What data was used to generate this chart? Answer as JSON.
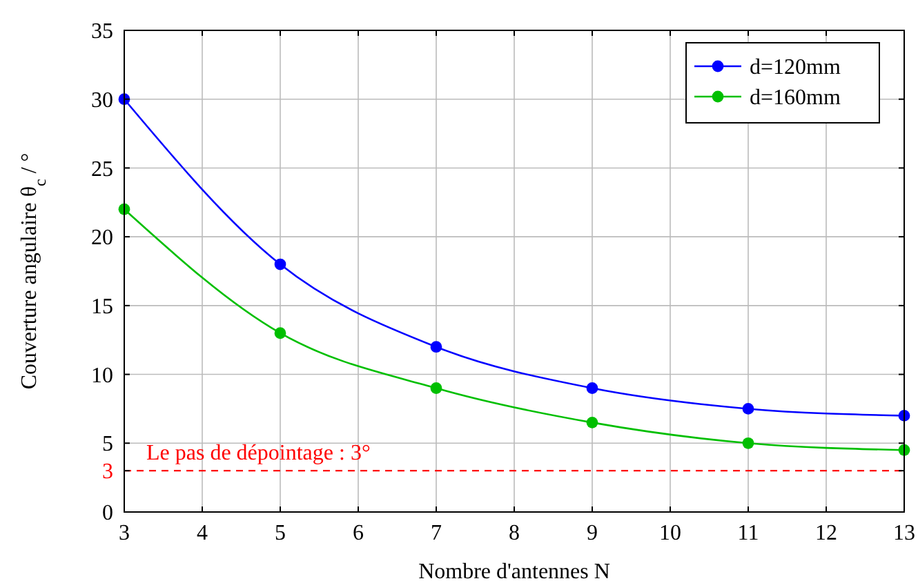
{
  "chart_data": {
    "type": "line",
    "xlabel": "Nombre d'antennes N",
    "ylabel": "Couverture angulaire θ$_{c}$ / °",
    "x": [
      3,
      5,
      7,
      9,
      11,
      13
    ],
    "series": [
      {
        "name": "d=120mm",
        "color": "#0000ff",
        "values": [
          30,
          18,
          12,
          9,
          7.5,
          7
        ]
      },
      {
        "name": "d=160mm",
        "color": "#00bf00",
        "values": [
          22,
          13,
          9,
          6.5,
          5,
          4.5
        ]
      }
    ],
    "xlim": [
      3,
      13
    ],
    "xticks": [
      3,
      4,
      5,
      6,
      7,
      8,
      9,
      10,
      11,
      12,
      13
    ],
    "ylim": [
      0,
      35
    ],
    "yticks": [
      0,
      3,
      5,
      10,
      15,
      20,
      25,
      30,
      35
    ],
    "ref_lines": [
      {
        "axis": "y",
        "value": 3,
        "label": "Le pas de dépointage : 3°",
        "color": "#ff0000",
        "line_style": "dashed"
      }
    ],
    "grid": true,
    "legend": "top right",
    "marker": "circle",
    "line_style": "solid"
  }
}
